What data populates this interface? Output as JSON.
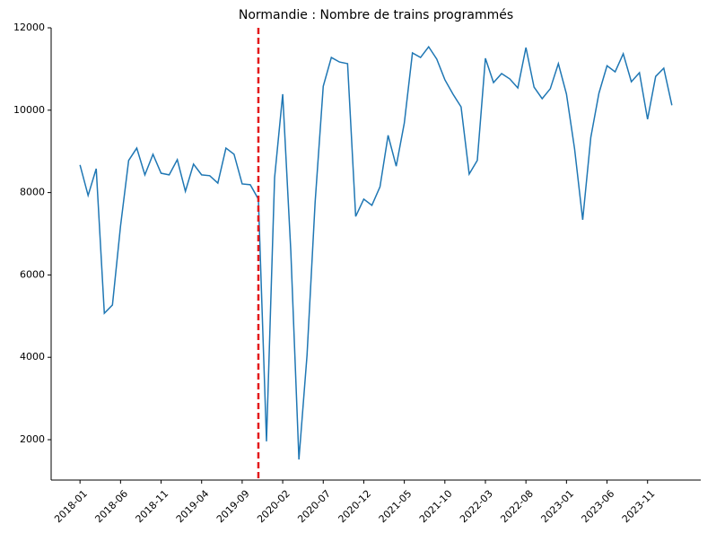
{
  "chart_data": {
    "type": "line",
    "title": "Normandie : Nombre de trains programmés",
    "x": [
      "2018-01",
      "2018-02",
      "2018-03",
      "2018-04",
      "2018-05",
      "2018-06",
      "2018-07",
      "2018-08",
      "2018-09",
      "2018-10",
      "2018-11",
      "2018-12",
      "2019-01",
      "2019-02",
      "2019-03",
      "2019-04",
      "2019-05",
      "2019-06",
      "2019-07",
      "2019-08",
      "2019-09",
      "2019-10",
      "2019-11",
      "2019-12",
      "2020-01",
      "2020-02",
      "2020-03",
      "2020-04",
      "2020-05",
      "2020-06",
      "2020-07",
      "2020-08",
      "2020-09",
      "2020-10",
      "2020-11",
      "2020-12",
      "2021-01",
      "2021-02",
      "2021-03",
      "2021-04",
      "2021-05",
      "2021-06",
      "2021-07",
      "2021-08",
      "2021-09",
      "2021-10",
      "2021-11",
      "2021-12",
      "2022-01",
      "2022-02",
      "2022-03",
      "2022-04",
      "2022-05",
      "2022-06",
      "2022-07",
      "2022-08",
      "2022-09",
      "2022-10",
      "2022-11",
      "2022-12",
      "2023-01",
      "2023-02",
      "2023-03",
      "2023-04",
      "2023-05",
      "2023-06",
      "2023-07",
      "2023-08",
      "2023-09",
      "2023-10",
      "2023-11",
      "2023-12",
      "2024-01",
      "2024-02"
    ],
    "series": [
      {
        "color": "#1f77b4",
        "values": [
          8670,
          7930,
          8580,
          5070,
          5270,
          7190,
          8780,
          9080,
          8430,
          8930,
          8470,
          8430,
          8800,
          8030,
          8690,
          8430,
          8410,
          8230,
          9080,
          8930,
          8210,
          8190,
          7840,
          1960,
          8360,
          10390,
          6580,
          1520,
          4050,
          7770,
          10580,
          11280,
          11170,
          11130,
          7420,
          7840,
          7690,
          8140,
          9390,
          8640,
          9690,
          11390,
          11280,
          11540,
          11240,
          10740,
          10390,
          10080,
          8450,
          8780,
          11260,
          10670,
          10890,
          10760,
          10540,
          11520,
          10560,
          10280,
          10520,
          11130,
          10390,
          9060,
          7340,
          9340,
          10410,
          11080,
          10930,
          11370,
          10690,
          10910,
          9780,
          10820,
          11020,
          10120
        ]
      }
    ],
    "xticks": [
      "2018-01",
      "2018-06",
      "2018-11",
      "2019-04",
      "2019-09",
      "2020-02",
      "2020-07",
      "2020-12",
      "2021-05",
      "2021-10",
      "2022-03",
      "2022-08",
      "2023-01",
      "2023-06",
      "2023-11"
    ],
    "ylim": [
      1020,
      12000
    ],
    "yticks": [
      2000,
      4000,
      6000,
      8000,
      10000,
      12000
    ],
    "vline": {
      "x": "2019-11",
      "color": "#e31a1c"
    }
  }
}
